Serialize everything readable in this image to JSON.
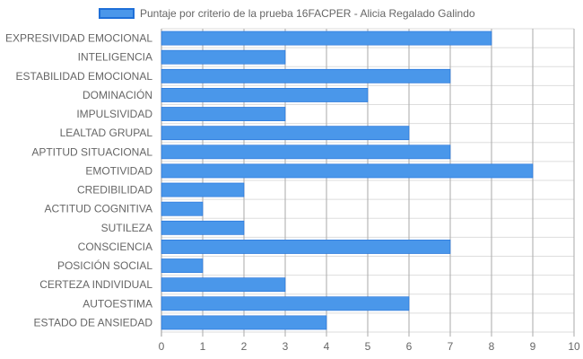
{
  "chart_data": {
    "type": "bar",
    "orientation": "horizontal",
    "categories": [
      "EXPRESIVIDAD EMOCIONAL",
      "INTELIGENCIA",
      "ESTABILIDAD EMOCIONAL",
      "DOMINACIÓN",
      "IMPULSIVIDAD",
      "LEALTAD GRUPAL",
      "APTITUD SITUACIONAL",
      "EMOTIVIDAD",
      "CREDIBILIDAD",
      "ACTITUD COGNITIVA",
      "SUTILEZA",
      "CONSCIENCIA",
      "POSICIÓN SOCIAL",
      "CERTEZA INDIVIDUAL",
      "AUTOESTIMA",
      "ESTADO DE ANSIEDAD"
    ],
    "series": [
      {
        "name": "Puntaje por criterio de la prueba 16FACPER - Alicia Regalado Galindo",
        "values": [
          8,
          3,
          7,
          5,
          3,
          6,
          7,
          9,
          2,
          1,
          2,
          7,
          1,
          3,
          6,
          4
        ]
      }
    ],
    "xlim": [
      0,
      10
    ],
    "xticks": [
      "0",
      "1",
      "2",
      "3",
      "4",
      "5",
      "6",
      "7",
      "8",
      "9",
      "10"
    ],
    "grid": true,
    "legend_position": "top",
    "colors": {
      "bar_fill": "#4a97ea",
      "bar_border": "#1e6fd8",
      "grid": "#dddddd",
      "grid_dark": "#999999",
      "text": "#666666"
    }
  }
}
